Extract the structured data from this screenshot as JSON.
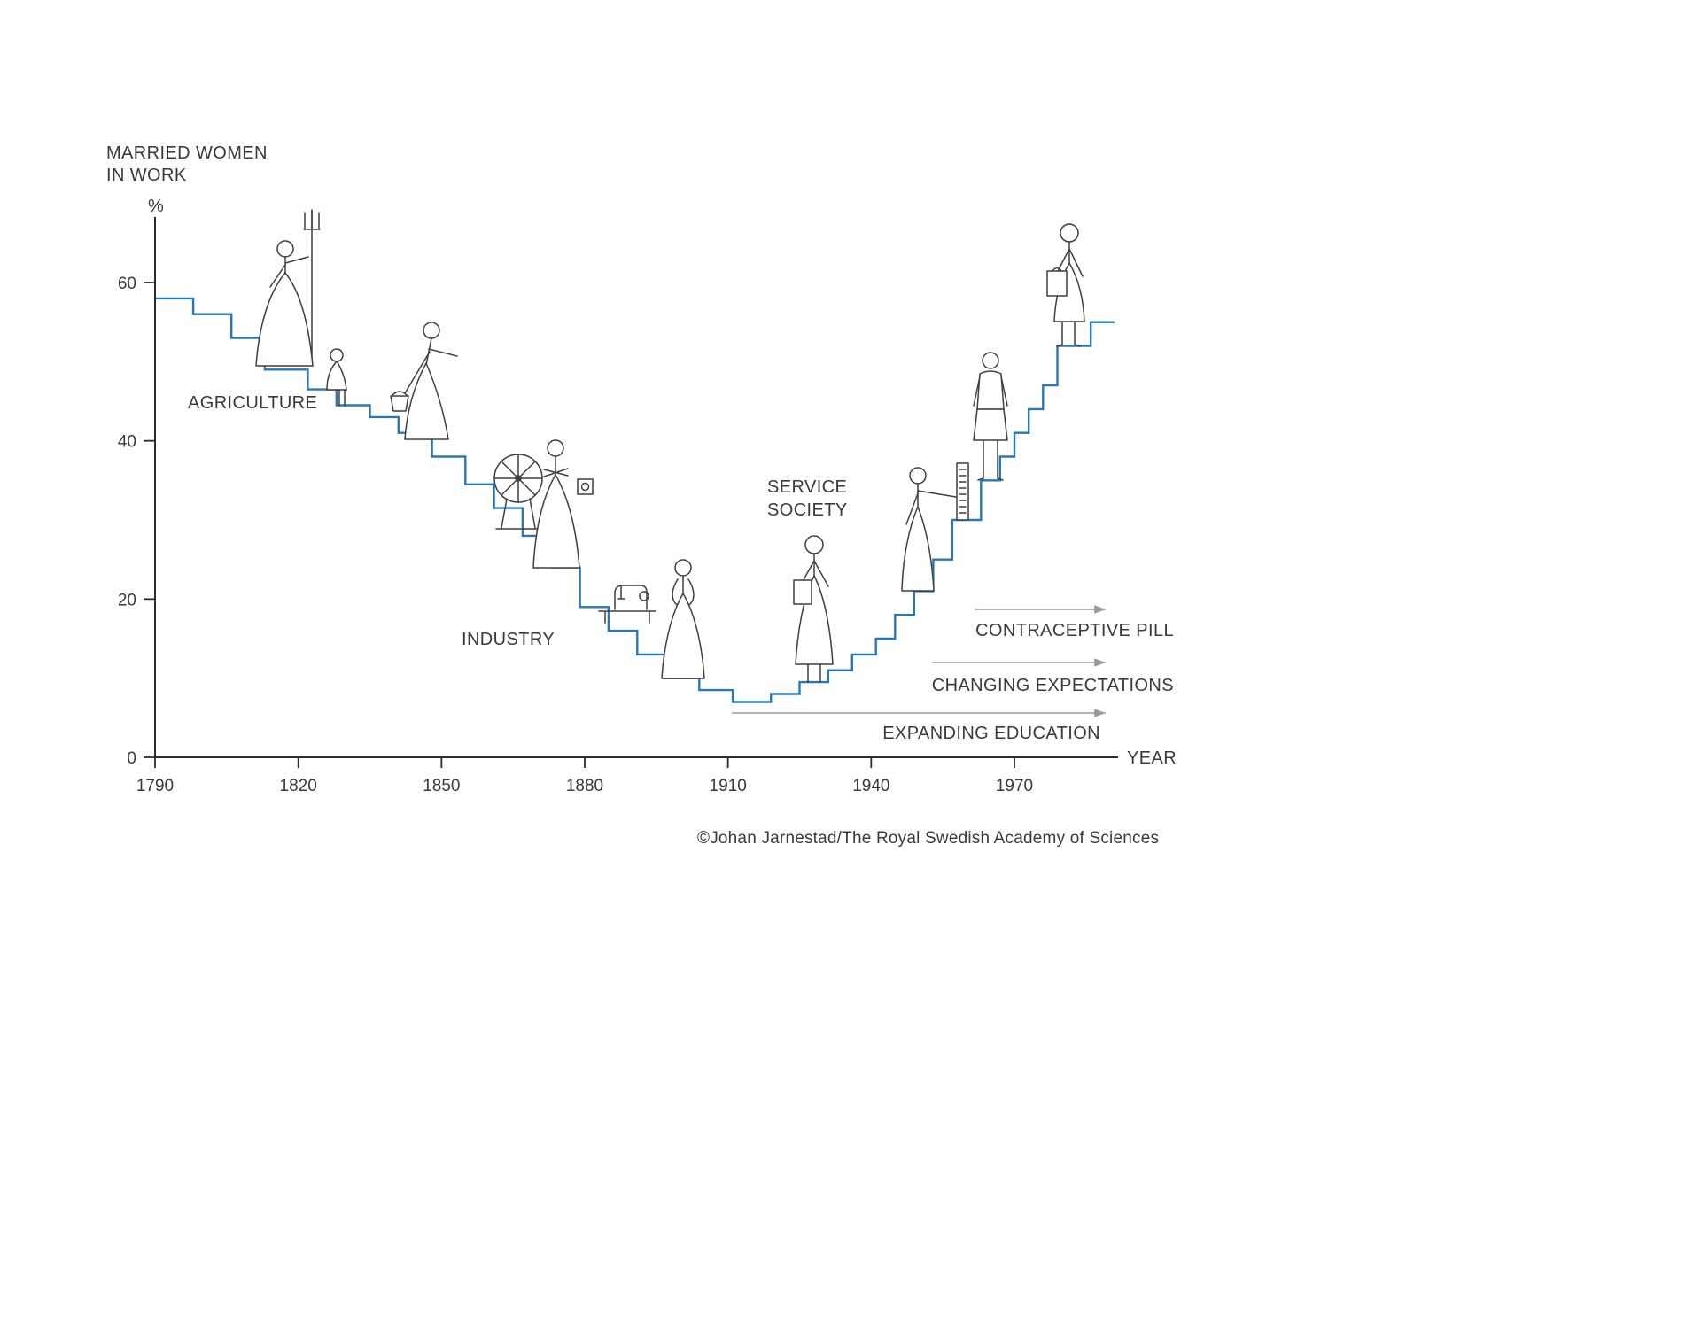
{
  "labels": {
    "y_axis_title": "MARRIED WOMEN\nIN WORK",
    "y_unit": "%",
    "x_axis_title": "YEAR",
    "agriculture": "AGRICULTURE",
    "industry": "INDUSTRY",
    "service_society": "SERVICE\nSOCIETY",
    "credit": "©Johan Jarnestad/The Royal Swedish Academy of Sciences"
  },
  "arrows": [
    {
      "label": "CONTRACEPTIVE PILL"
    },
    {
      "label": "CHANGING EXPECTATIONS"
    },
    {
      "label": "EXPANDING EDUCATION"
    }
  ],
  "figures": [
    "woman-with-pitchfork",
    "seated-girl",
    "woman-with-bucket",
    "woman-at-spinning-wheel",
    "sewing-machine",
    "woman-1900",
    "woman-with-documents",
    "woman-at-switchboard",
    "woman-in-suit",
    "woman-with-briefcase"
  ],
  "colors": {
    "line": "#2878b4",
    "axis": "#2b2b2b",
    "text": "#3a3a3a",
    "arrow": "#9a9a9a"
  },
  "chart_data": {
    "type": "line",
    "style": "step",
    "title": "Married women in work (%), 1790–1990 (U-shaped participation curve)",
    "xlabel": "YEAR",
    "ylabel": "MARRIED WOMEN IN WORK",
    "y_unit": "%",
    "x": [
      1790,
      1798,
      1806,
      1813,
      1822,
      1828,
      1835,
      1841,
      1848,
      1855,
      1861,
      1867,
      1873,
      1879,
      1885,
      1891,
      1897,
      1904,
      1911,
      1919,
      1925,
      1931,
      1936,
      1941,
      1945,
      1949,
      1953,
      1957,
      1963,
      1967,
      1970,
      1973,
      1976,
      1979,
      1986
    ],
    "y": [
      58,
      56,
      53,
      49,
      46.5,
      44.5,
      43,
      41,
      38,
      34.5,
      31.5,
      28,
      24,
      19,
      16,
      13,
      10,
      8.5,
      7,
      8,
      9.5,
      11,
      13,
      15,
      18,
      21,
      25,
      30,
      35,
      38,
      41,
      44,
      47,
      52,
      55
    ],
    "x_end": 1991,
    "xticks": [
      1790,
      1820,
      1850,
      1880,
      1910,
      1940,
      1970
    ],
    "yticks": [
      0,
      20,
      40,
      60
    ],
    "xlim": [
      1790,
      2000
    ],
    "ylim": [
      0,
      68
    ],
    "grid": false,
    "legend": "none",
    "line_color": "#2878b4",
    "era_labels": [
      "AGRICULTURE",
      "INDUSTRY",
      "SERVICE SOCIETY"
    ],
    "arrow_annotations": [
      "CONTRACEPTIVE PILL",
      "CHANGING EXPECTATIONS",
      "EXPANDING EDUCATION"
    ]
  }
}
